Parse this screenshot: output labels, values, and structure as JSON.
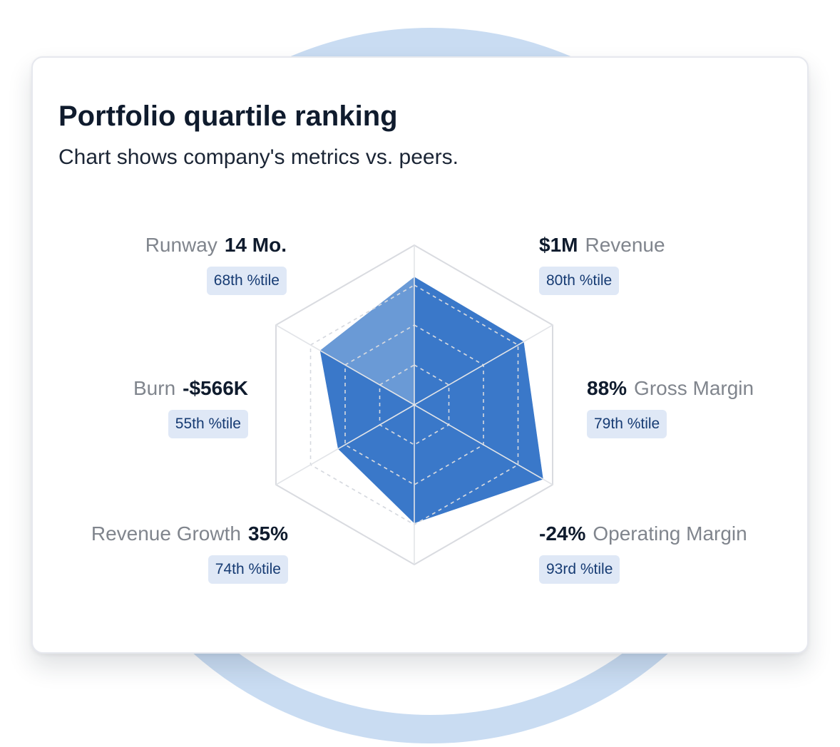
{
  "card": {
    "title": "Portfolio quartile ranking",
    "subtitle": "Chart shows company's metrics vs. peers."
  },
  "colors": {
    "fill_primary": "#3a78c9",
    "fill_light": "#6a9ad6",
    "grid_line": "#d9dbe0",
    "badge_bg": "#dfe8f6",
    "badge_text": "#163b73",
    "ring": "#c9dcf2"
  },
  "metrics": [
    {
      "name": "Revenue",
      "value": "$1M",
      "percentile": "80th %tile"
    },
    {
      "name": "Gross Margin",
      "value": "88%",
      "percentile": "79th %tile"
    },
    {
      "name": "Operating Margin",
      "value": "-24%",
      "percentile": "93rd %tile"
    },
    {
      "name": "Revenue Growth",
      "value": "35%",
      "percentile": "74th %tile"
    },
    {
      "name": "Burn",
      "value": "-$566K",
      "percentile": "55th %tile"
    },
    {
      "name": "Runway",
      "value": "14 Mo.",
      "percentile": "68th %tile"
    }
  ],
  "chart_data": {
    "type": "radar",
    "axes": [
      "Revenue",
      "Gross Margin",
      "Operating Margin",
      "Revenue Growth",
      "Burn",
      "Runway"
    ],
    "values": [
      80,
      79,
      93,
      74,
      55,
      68
    ],
    "range": [
      0,
      100
    ],
    "grid_levels": [
      25,
      50,
      75,
      100
    ]
  }
}
